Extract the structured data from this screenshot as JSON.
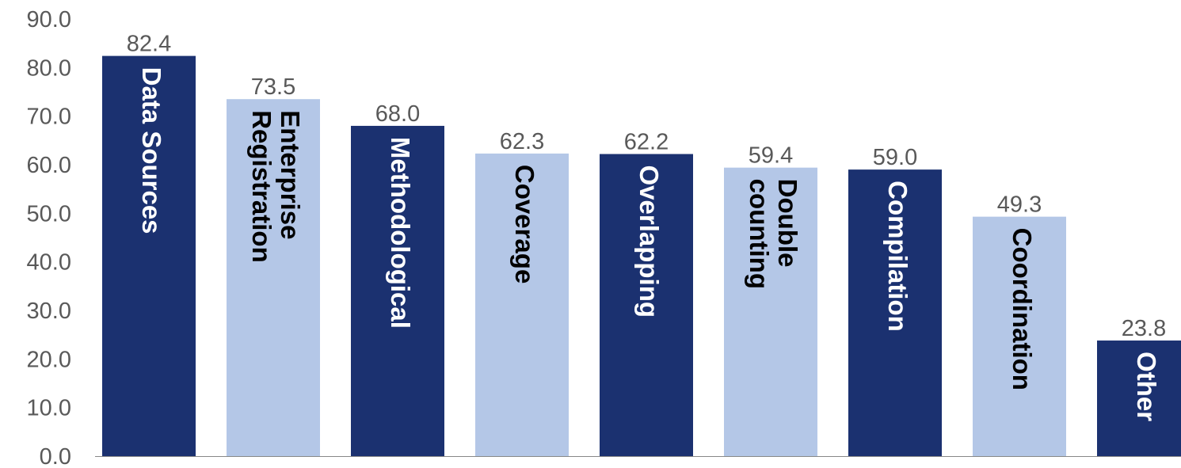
{
  "chart_data": {
    "type": "bar",
    "title": "",
    "xlabel": "",
    "ylabel": "",
    "ylim": [
      0,
      90
    ],
    "yticks": [
      "0.0",
      "10.0",
      "20.0",
      "30.0",
      "40.0",
      "50.0",
      "60.0",
      "70.0",
      "80.0",
      "90.0"
    ],
    "grid": false,
    "legend": "none",
    "categories": [
      [
        "Data Sources"
      ],
      [
        "Enterprise",
        "Registration"
      ],
      [
        "Methodological"
      ],
      [
        "Coverage"
      ],
      [
        "Overlapping"
      ],
      [
        "Double",
        "counting"
      ],
      [
        "Compilation"
      ],
      [
        "Coordination"
      ],
      [
        "Other"
      ]
    ],
    "values": [
      82.4,
      73.5,
      68.0,
      62.3,
      62.2,
      59.4,
      59.0,
      49.3,
      23.8
    ],
    "value_labels": [
      "82.4",
      "73.5",
      "68.0",
      "62.3",
      "62.2",
      "59.4",
      "59.0",
      "49.3",
      "23.8"
    ],
    "colors": {
      "dark": "#1b3170",
      "light": "#b4c7e7",
      "dark_text": "#ffffff",
      "light_text": "#000000",
      "axis": "#888888"
    },
    "bar_pattern": [
      "dark",
      "light",
      "dark",
      "light",
      "dark",
      "light",
      "dark",
      "light",
      "dark"
    ]
  }
}
